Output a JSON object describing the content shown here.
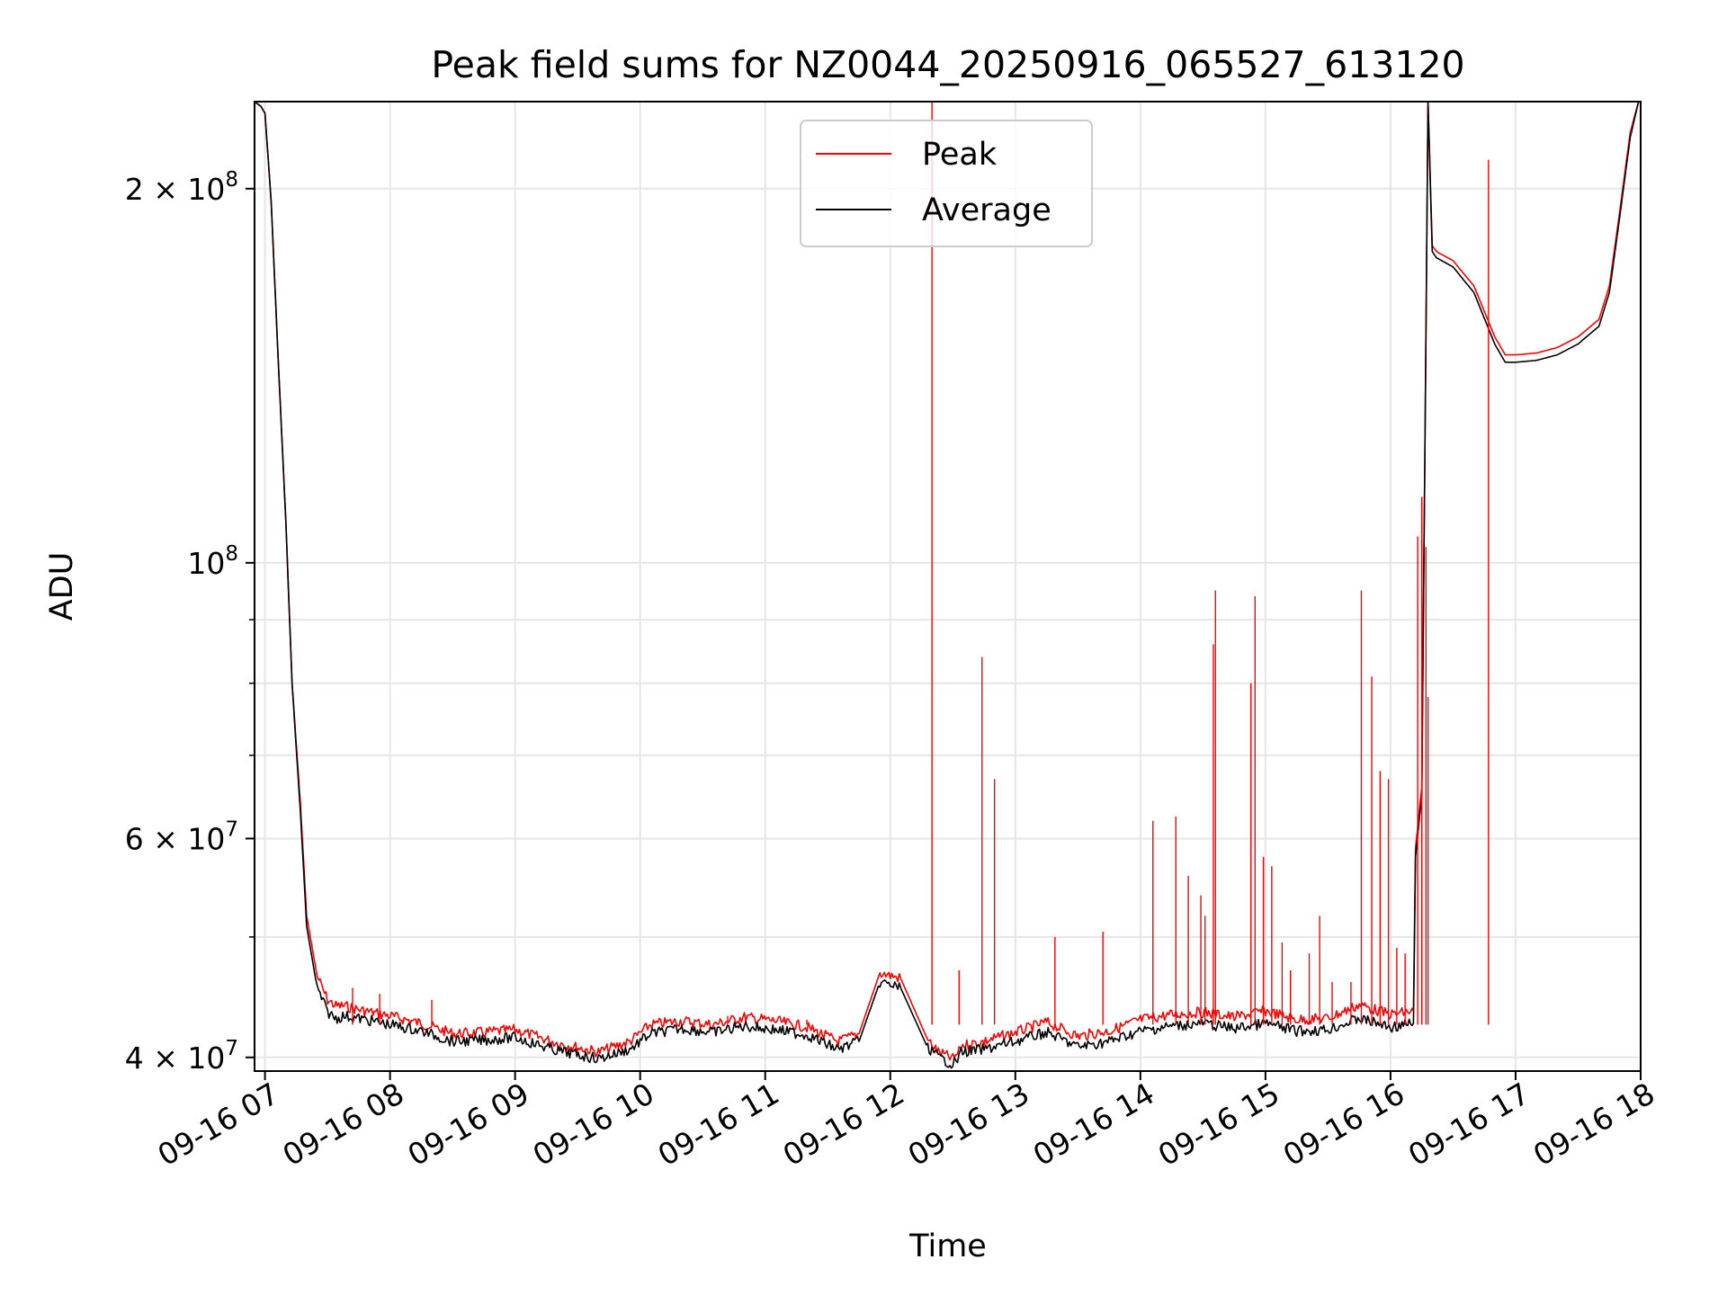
{
  "chart_data": {
    "type": "line",
    "title": "Peak field sums for NZ0044_20250916_065527_613120",
    "xlabel": "Time",
    "ylabel": "ADU",
    "x_scale": "time",
    "y_scale": "log",
    "xlim": [
      "2025-09-16T06:55",
      "2025-09-16T18:00"
    ],
    "ylim": [
      39000000,
      235000000
    ],
    "grid": true,
    "legend_position": "upper center",
    "x_ticks": [
      {
        "value": "2025-09-16T07:00",
        "label": "09-16 07"
      },
      {
        "value": "2025-09-16T08:00",
        "label": "09-16 08"
      },
      {
        "value": "2025-09-16T09:00",
        "label": "09-16 09"
      },
      {
        "value": "2025-09-16T10:00",
        "label": "09-16 10"
      },
      {
        "value": "2025-09-16T11:00",
        "label": "09-16 11"
      },
      {
        "value": "2025-09-16T12:00",
        "label": "09-16 12"
      },
      {
        "value": "2025-09-16T13:00",
        "label": "09-16 13"
      },
      {
        "value": "2025-09-16T14:00",
        "label": "09-16 14"
      },
      {
        "value": "2025-09-16T15:00",
        "label": "09-16 15"
      },
      {
        "value": "2025-09-16T16:00",
        "label": "09-16 16"
      },
      {
        "value": "2025-09-16T17:00",
        "label": "09-16 17"
      },
      {
        "value": "2025-09-16T18:00",
        "label": "09-16 18"
      }
    ],
    "y_ticks": [
      {
        "value": 40000000,
        "label_base": "4 × 10",
        "label_exp": "7"
      },
      {
        "value": 60000000,
        "label_base": "6 × 10",
        "label_exp": "7"
      },
      {
        "value": 100000000,
        "label_base": "10",
        "label_exp": "8"
      },
      {
        "value": 200000000,
        "label_base": "2 × 10",
        "label_exp": "8"
      }
    ],
    "y_minor_ticks": [
      50000000,
      70000000,
      80000000,
      90000000,
      300000000
    ],
    "series": [
      {
        "name": "Average",
        "color": "#000000",
        "line_width": 1,
        "x": [
          "2025-09-16T06:55",
          "2025-09-16T06:58",
          "2025-09-16T07:00",
          "2025-09-16T07:03",
          "2025-09-16T07:06",
          "2025-09-16T07:10",
          "2025-09-16T07:13",
          "2025-09-16T07:17",
          "2025-09-16T07:20",
          "2025-09-16T07:25",
          "2025-09-16T07:30",
          "2025-09-16T07:34",
          "2025-09-16T07:38",
          "2025-09-16T07:45",
          "2025-09-16T08:00",
          "2025-09-16T08:15",
          "2025-09-16T08:30",
          "2025-09-16T08:45",
          "2025-09-16T09:00",
          "2025-09-16T09:20",
          "2025-09-16T09:40",
          "2025-09-16T09:55",
          "2025-09-16T10:05",
          "2025-09-16T10:20",
          "2025-09-16T10:35",
          "2025-09-16T10:50",
          "2025-09-16T11:05",
          "2025-09-16T11:20",
          "2025-09-16T11:35",
          "2025-09-16T11:45",
          "2025-09-16T11:55",
          "2025-09-16T12:05",
          "2025-09-16T12:18",
          "2025-09-16T12:20",
          "2025-09-16T12:21",
          "2025-09-16T12:23",
          "2025-09-16T12:30",
          "2025-09-16T12:33",
          "2025-09-16T12:34",
          "2025-09-16T12:45",
          "2025-09-16T13:00",
          "2025-09-16T13:15",
          "2025-09-16T13:30",
          "2025-09-16T13:45",
          "2025-09-16T14:00",
          "2025-09-16T14:15",
          "2025-09-16T14:30",
          "2025-09-16T14:45",
          "2025-09-16T15:00",
          "2025-09-16T15:15",
          "2025-09-16T15:30",
          "2025-09-16T15:45",
          "2025-09-16T16:00",
          "2025-09-16T16:11",
          "2025-09-16T16:12",
          "2025-09-16T16:15",
          "2025-09-16T16:18",
          "2025-09-16T16:20",
          "2025-09-16T16:22",
          "2025-09-16T16:30",
          "2025-09-16T16:40",
          "2025-09-16T16:50",
          "2025-09-16T16:55",
          "2025-09-16T17:00",
          "2025-09-16T17:10",
          "2025-09-16T17:20",
          "2025-09-16T17:30",
          "2025-09-16T17:40",
          "2025-09-16T17:45",
          "2025-09-16T17:50",
          "2025-09-16T17:55",
          "2025-09-16T17:59"
        ],
        "y": [
          235000000,
          233000000,
          230000000,
          195000000,
          150000000,
          108000000,
          80000000,
          63000000,
          51000000,
          45500000,
          43500000,
          43000000,
          43200000,
          43000000,
          42500000,
          42000000,
          41200000,
          41300000,
          41500000,
          40500000,
          39900000,
          40600000,
          41800000,
          42200000,
          41900000,
          42400000,
          42100000,
          41700000,
          40600000,
          41200000,
          46000000,
          45500000,
          40700000,
          40500000,
          40400000,
          40000000,
          39500000,
          40000000,
          40400000,
          40600000,
          41200000,
          41900000,
          40800000,
          41200000,
          42000000,
          42400000,
          42600000,
          42200000,
          42600000,
          42000000,
          42100000,
          43000000,
          42300000,
          42600000,
          58000000,
          65000000,
          235000000,
          178000000,
          176000000,
          173000000,
          165000000,
          150000000,
          145000000,
          145000000,
          145500000,
          147000000,
          150000000,
          155000000,
          165000000,
          190000000,
          220000000,
          235000000
        ]
      },
      {
        "name": "Peak",
        "color": "#ff0000",
        "line_width": 1,
        "x": [
          "2025-09-16T06:55",
          "2025-09-16T06:58",
          "2025-09-16T07:00",
          "2025-09-16T07:03",
          "2025-09-16T07:06",
          "2025-09-16T07:10",
          "2025-09-16T07:13",
          "2025-09-16T07:17",
          "2025-09-16T07:20",
          "2025-09-16T07:25",
          "2025-09-16T07:30",
          "2025-09-16T07:34",
          "2025-09-16T07:38",
          "2025-09-16T07:45",
          "2025-09-16T08:00",
          "2025-09-16T08:15",
          "2025-09-16T08:30",
          "2025-09-16T08:45",
          "2025-09-16T09:00",
          "2025-09-16T09:20",
          "2025-09-16T09:40",
          "2025-09-16T09:55",
          "2025-09-16T10:05",
          "2025-09-16T10:20",
          "2025-09-16T10:35",
          "2025-09-16T10:50",
          "2025-09-16T11:05",
          "2025-09-16T11:20",
          "2025-09-16T11:35",
          "2025-09-16T11:45",
          "2025-09-16T11:55",
          "2025-09-16T12:05",
          "2025-09-16T12:18",
          "2025-09-16T12:20",
          "2025-09-16T12:21",
          "2025-09-16T12:23",
          "2025-09-16T12:30",
          "2025-09-16T12:33",
          "2025-09-16T12:34",
          "2025-09-16T12:45",
          "2025-09-16T13:00",
          "2025-09-16T13:15",
          "2025-09-16T13:30",
          "2025-09-16T13:45",
          "2025-09-16T14:00",
          "2025-09-16T14:15",
          "2025-09-16T14:30",
          "2025-09-16T14:45",
          "2025-09-16T15:00",
          "2025-09-16T15:15",
          "2025-09-16T15:30",
          "2025-09-16T15:45",
          "2025-09-16T16:00",
          "2025-09-16T16:11",
          "2025-09-16T16:12",
          "2025-09-16T16:15",
          "2025-09-16T16:18",
          "2025-09-16T16:20",
          "2025-09-16T16:22",
          "2025-09-16T16:30",
          "2025-09-16T16:40",
          "2025-09-16T16:50",
          "2025-09-16T16:55",
          "2025-09-16T17:00",
          "2025-09-16T17:10",
          "2025-09-16T17:20",
          "2025-09-16T17:30",
          "2025-09-16T17:40",
          "2025-09-16T17:45",
          "2025-09-16T17:50",
          "2025-09-16T17:55",
          "2025-09-16T17:59"
        ],
        "y": [
          235000000,
          233000000,
          230000000,
          195000000,
          150000000,
          108000000,
          80000000,
          64000000,
          52000000,
          46500000,
          44500000,
          44000000,
          44000000,
          43700000,
          43200000,
          42600000,
          41800000,
          41900000,
          42100000,
          41100000,
          40400000,
          41200000,
          42500000,
          42800000,
          42500000,
          43100000,
          42800000,
          42300000,
          41200000,
          41800000,
          46800000,
          46300000,
          41300000,
          41000000,
          40800000,
          40400000,
          39900000,
          40400000,
          40900000,
          41200000,
          41900000,
          42700000,
          41600000,
          42000000,
          42900000,
          43300000,
          43500000,
          43100000,
          43600000,
          42900000,
          43000000,
          44100000,
          43300000,
          43600000,
          59000000,
          66000000,
          235000000,
          180000000,
          178000000,
          175000000,
          167000000,
          152000000,
          147000000,
          147000000,
          147500000,
          149000000,
          152000000,
          157000000,
          167000000,
          192000000,
          222000000,
          235000000
        ]
      },
      {
        "name": "",
        "kind": "spikes",
        "color": "#ff0000",
        "x": [
          "2025-09-16T07:42",
          "2025-09-16T07:55",
          "2025-09-16T08:20",
          "2025-09-16T10:42",
          "2025-09-16T11:20",
          "2025-09-16T12:20",
          "2025-09-16T12:33",
          "2025-09-16T12:44",
          "2025-09-16T12:50",
          "2025-09-16T13:19",
          "2025-09-16T13:42",
          "2025-09-16T14:06",
          "2025-09-16T14:17",
          "2025-09-16T14:23",
          "2025-09-16T14:29",
          "2025-09-16T14:31",
          "2025-09-16T14:35",
          "2025-09-16T14:36",
          "2025-09-16T14:53",
          "2025-09-16T14:55",
          "2025-09-16T14:59",
          "2025-09-16T15:03",
          "2025-09-16T15:08",
          "2025-09-16T15:12",
          "2025-09-16T15:21",
          "2025-09-16T15:26",
          "2025-09-16T15:32",
          "2025-09-16T15:41",
          "2025-09-16T15:46",
          "2025-09-16T15:51",
          "2025-09-16T15:55",
          "2025-09-16T15:59",
          "2025-09-16T16:03",
          "2025-09-16T16:07",
          "2025-09-16T16:13",
          "2025-09-16T16:15",
          "2025-09-16T16:17",
          "2025-09-16T16:18",
          "2025-09-16T16:47"
        ],
        "y": [
          45500000,
          45000000,
          44500000,
          43200000,
          42900000,
          235000000,
          47000000,
          84000000,
          67000000,
          50000000,
          50500000,
          62000000,
          62500000,
          56000000,
          54000000,
          52000000,
          86000000,
          95000000,
          80000000,
          94000000,
          58000000,
          57000000,
          49500000,
          47000000,
          48500000,
          52000000,
          46000000,
          46000000,
          95000000,
          81000000,
          68000000,
          67000000,
          49000000,
          48500000,
          105000000,
          113000000,
          103000000,
          78000000,
          211000000
        ]
      }
    ]
  }
}
